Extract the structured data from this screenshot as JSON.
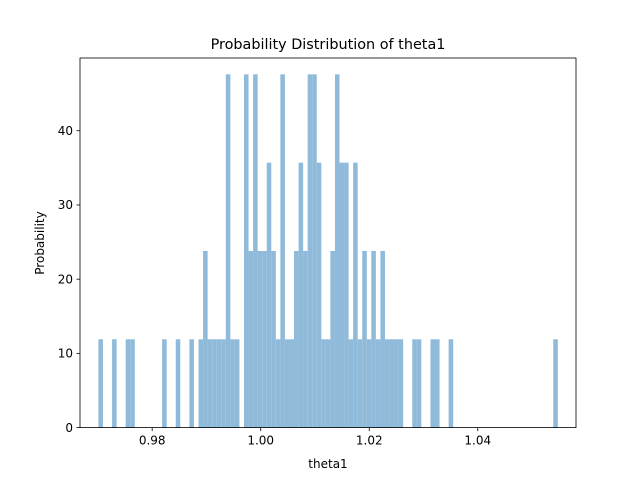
{
  "chart_data": {
    "type": "bar",
    "title": "Probability Distribution of theta1",
    "xlabel": "theta1",
    "ylabel": "Probability",
    "xlim": [
      0.9667,
      1.0581
    ],
    "ylim": [
      0,
      49.8
    ],
    "xticks": [
      0.98,
      1.0,
      1.02,
      1.04
    ],
    "xtick_labels": [
      "0.98",
      "1.00",
      "1.02",
      "1.04"
    ],
    "yticks": [
      0,
      10,
      20,
      30,
      40
    ],
    "ytick_labels": [
      "0",
      "10",
      "20",
      "30",
      "40"
    ],
    "grid": false,
    "legend": false,
    "bar_color": "#8fbad9",
    "bin_width": 0.000838,
    "bins": [
      {
        "x": 0.97051,
        "y": 11.9
      },
      {
        "x": 0.97303,
        "y": 11.9
      },
      {
        "x": 0.97554,
        "y": 11.9
      },
      {
        "x": 0.97638,
        "y": 11.9
      },
      {
        "x": 0.98225,
        "y": 11.9
      },
      {
        "x": 0.98476,
        "y": 11.9
      },
      {
        "x": 0.98728,
        "y": 11.9
      },
      {
        "x": 0.98896,
        "y": 11.9
      },
      {
        "x": 0.9898,
        "y": 23.8
      },
      {
        "x": 0.99063,
        "y": 11.9
      },
      {
        "x": 0.99147,
        "y": 11.9
      },
      {
        "x": 0.99231,
        "y": 11.9
      },
      {
        "x": 0.99315,
        "y": 11.9
      },
      {
        "x": 0.99399,
        "y": 47.6
      },
      {
        "x": 0.99482,
        "y": 11.9
      },
      {
        "x": 0.99566,
        "y": 11.9
      },
      {
        "x": 0.99734,
        "y": 47.6
      },
      {
        "x": 0.99818,
        "y": 23.8
      },
      {
        "x": 0.99902,
        "y": 47.6
      },
      {
        "x": 0.99985,
        "y": 23.8
      },
      {
        "x": 1.00069,
        "y": 23.8
      },
      {
        "x": 1.00153,
        "y": 35.7
      },
      {
        "x": 1.00237,
        "y": 23.8
      },
      {
        "x": 1.00321,
        "y": 11.9
      },
      {
        "x": 1.00404,
        "y": 47.6
      },
      {
        "x": 1.00488,
        "y": 11.9
      },
      {
        "x": 1.00572,
        "y": 11.9
      },
      {
        "x": 1.00656,
        "y": 23.8
      },
      {
        "x": 1.0074,
        "y": 35.7
      },
      {
        "x": 1.00823,
        "y": 23.8
      },
      {
        "x": 1.00907,
        "y": 47.6
      },
      {
        "x": 1.00991,
        "y": 47.6
      },
      {
        "x": 1.01075,
        "y": 35.7
      },
      {
        "x": 1.01159,
        "y": 11.9
      },
      {
        "x": 1.01242,
        "y": 11.9
      },
      {
        "x": 1.01326,
        "y": 23.8
      },
      {
        "x": 1.0141,
        "y": 47.6
      },
      {
        "x": 1.01494,
        "y": 35.7
      },
      {
        "x": 1.01578,
        "y": 35.7
      },
      {
        "x": 1.01661,
        "y": 11.9
      },
      {
        "x": 1.01745,
        "y": 35.7
      },
      {
        "x": 1.01829,
        "y": 11.9
      },
      {
        "x": 1.01913,
        "y": 23.8
      },
      {
        "x": 1.01997,
        "y": 11.9
      },
      {
        "x": 1.0208,
        "y": 23.8
      },
      {
        "x": 1.02164,
        "y": 11.9
      },
      {
        "x": 1.02248,
        "y": 23.8
      },
      {
        "x": 1.02332,
        "y": 11.9
      },
      {
        "x": 1.02416,
        "y": 11.9
      },
      {
        "x": 1.02499,
        "y": 11.9
      },
      {
        "x": 1.02583,
        "y": 11.9
      },
      {
        "x": 1.02835,
        "y": 11.9
      },
      {
        "x": 1.02918,
        "y": 11.9
      },
      {
        "x": 1.0317,
        "y": 11.9
      },
      {
        "x": 1.03254,
        "y": 11.9
      },
      {
        "x": 1.03505,
        "y": 11.9
      },
      {
        "x": 1.05433,
        "y": 11.9
      }
    ]
  }
}
